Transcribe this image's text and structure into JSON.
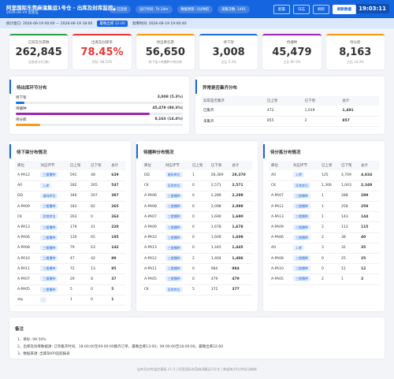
{
  "header": {
    "title": "阿里国际东莞麻涌集运1号仓 - 出库及封库监控",
    "date": "2026-06-19 星期五",
    "status": [
      "● 已连接",
      "运行时间: 7h 24m",
      "数据更新: 2分钟前",
      "采集次数: 1491"
    ],
    "buttons": [
      "配置",
      "日志",
      "刷新",
      "刷新数据"
    ],
    "clock": "19:03:11"
  },
  "window": {
    "range": "统计窗口: 2026-06-19 00:00 — 2026-06-19 18:00",
    "tag": "最晚出库 22:00",
    "seal": "封库时间: 2026-06-19 19:00:40"
  },
  "kpis": [
    {
      "label": "已装车包裹数",
      "value": "262,845",
      "sub": "当前合计(已装)",
      "color": "#2e9e4f"
    },
    {
      "label": "出库及封库率",
      "value": "78.45%",
      "sub": "目标: 99.50%",
      "color": "#e53935"
    },
    {
      "label": "待出库包裹",
      "value": "56,650",
      "sub": "待下架+待播种+待分拣",
      "color": "#f39c12"
    },
    {
      "label": "待下架",
      "value": "3,008",
      "sub": "占比 5.3%",
      "color": "#1e6fd9"
    },
    {
      "label": "待播种",
      "value": "45,479",
      "sub": "占比 80.3%",
      "color": "#9c27b0"
    },
    {
      "label": "待分拣",
      "value": "8,163",
      "sub": "占比 14.4%",
      "color": "#f39c12"
    }
  ],
  "pending": {
    "title": "待出库环节分布",
    "rows": [
      {
        "label": "待下架",
        "value": "3,008",
        "share_label": "(5.3%)",
        "share": 5.3,
        "color": "#1e6fd9"
      },
      {
        "label": "待播种",
        "value": "45,479",
        "share_label": "(80.3%)",
        "share": 80.3,
        "color": "#9c27b0"
      },
      {
        "label": "待分拣",
        "value": "8,163",
        "share_label": "(14.4%)",
        "share": 14.4,
        "color": "#f39c12"
      }
    ]
  },
  "exception": {
    "title": "异常是否集齐分布",
    "columns": [
      "异常是否集齐",
      "已上架",
      "已下架",
      "总计"
    ],
    "rows": [
      [
        "已集齐",
        "472",
        "1,019",
        "1,491"
      ],
      [
        "未集齐",
        "855",
        "2",
        "857"
      ]
    ]
  },
  "tables": [
    {
      "title": "待下架分布情况",
      "columns": [
        "库位",
        "对应环节",
        "已上架",
        "已下架",
        "总计"
      ],
      "rows": [
        [
          "A-PA12",
          "三楼播种",
          "591",
          "48",
          "639"
        ],
        [
          "A0",
          "入库",
          "282",
          "265",
          "547"
        ],
        [
          "DD",
          "维码库位",
          "180",
          "207",
          "387"
        ],
        [
          "A-PA09",
          "三楼播种",
          "183",
          "82",
          "265"
        ],
        [
          "CK",
          "异常库位",
          "263",
          "0",
          "263"
        ],
        [
          "A-PA13",
          "三楼播种",
          "179",
          "41",
          "220"
        ],
        [
          "A-PA06",
          "三楼播种",
          "130",
          "65",
          "195"
        ],
        [
          "A-PA08",
          "三楼播种",
          "79",
          "63",
          "142"
        ],
        [
          "A-PA10",
          "三楼播种",
          "47",
          "42",
          "89"
        ],
        [
          "A-PA11",
          "三楼播种",
          "72",
          "13",
          "85"
        ],
        [
          "A-PA07",
          "三楼播种",
          "29",
          "8",
          "37"
        ],
        [
          "A-PA05",
          "三楼播种",
          "5",
          "0",
          "5"
        ],
        [
          "sky",
          "-",
          "1",
          "0",
          "1"
        ]
      ]
    },
    {
      "title": "待播种分布情况",
      "columns": [
        "库位",
        "对应环节",
        "已上架",
        "已下架",
        "总计"
      ],
      "rows": [
        [
          "DD",
          "维码库位",
          "1",
          "28,369",
          "28,370"
        ],
        [
          "CK",
          "异常库位",
          "0",
          "2,571",
          "2,571"
        ],
        [
          "A-PA06",
          "三楼播种",
          "0",
          "2,289",
          "2,289"
        ],
        [
          "A-PA08",
          "三楼播种",
          "0",
          "2,098",
          "2,098"
        ],
        [
          "A-PA07",
          "三楼播种",
          "0",
          "1,690",
          "1,690"
        ],
        [
          "A-PA09",
          "三楼播种",
          "0",
          "1,678",
          "1,678"
        ],
        [
          "A-PA10",
          "三楼播种",
          "0",
          "1,609",
          "1,609"
        ],
        [
          "A-PA13",
          "三楼播种",
          "0",
          "1,445",
          "1,445"
        ],
        [
          "A-PA12",
          "三楼播种",
          "2",
          "1,404",
          "1,406"
        ],
        [
          "A-PA11",
          "三楼播种",
          "0",
          "984",
          "984"
        ],
        [
          "A-PA05",
          "三楼播种",
          "0",
          "479",
          "479"
        ],
        [
          "CK",
          "异常库位",
          "5",
          "372",
          "377"
        ]
      ]
    },
    {
      "title": "待分拣分布情况",
      "columns": [
        "库位",
        "对应环节",
        "已上架",
        "已下架",
        "总计"
      ],
      "rows": [
        [
          "A0",
          "入库",
          "125",
          "4,709",
          "4,834"
        ],
        [
          "CK",
          "异常库位",
          "1,306",
          "1,043",
          "2,349"
        ],
        [
          "A-PA07",
          "三楼播种",
          "1",
          "288",
          "289"
        ],
        [
          "A-PA12",
          "三楼播种",
          "1",
          "258",
          "259"
        ],
        [
          "A-PA13",
          "三楼播种",
          "1",
          "143",
          "144"
        ],
        [
          "A-PA09",
          "三楼播种",
          "2",
          "113",
          "115"
        ],
        [
          "A-PA06",
          "三楼播种",
          "2",
          "38",
          "40"
        ],
        [
          "A0",
          "入库",
          "3",
          "32",
          "35"
        ],
        [
          "A-PA08",
          "三楼播种",
          "0",
          "25",
          "25"
        ],
        [
          "A-PA10",
          "三楼播种",
          "0",
          "12",
          "12"
        ],
        [
          "A-PA05",
          "三楼播种",
          "2",
          "1",
          "3"
        ]
      ]
    }
  ],
  "notes": {
    "title": "备注",
    "items": [
      "1、目标: 99.50%",
      "2、出库及封库数据源: 订单集齐时间、18:00:00至09:00:00集齐订单，最晚出库13:00；09:00:00至18:00:00，最晚出库22:00",
      "3、数据来源: 出库及KPI追踪报表"
    ]
  },
  "footer": "出库及封库监控看板 v1.0 | 阿里国际东莞麻涌集运1号仓 | 数据每30分钟自动刷新"
}
